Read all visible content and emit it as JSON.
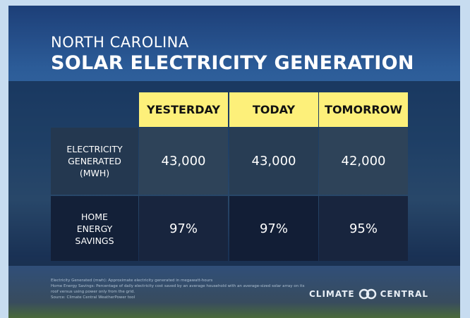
{
  "header": {
    "title_line1": "NORTH CAROLINA",
    "title_line2": "SOLAR ELECTRICITY GENERATION"
  },
  "table": {
    "columns": [
      "YESTERDAY",
      "TODAY",
      "TOMORROW"
    ],
    "rows": [
      {
        "label": "ELECTRICITY GENERATED (MWH)",
        "cells": [
          "43,000",
          "43,000",
          "42,000"
        ]
      },
      {
        "label": "HOME ENERGY SAVINGS",
        "cells": [
          "97%",
          "97%",
          "95%"
        ]
      }
    ]
  },
  "footnotes": [
    "Electricity Generated (mwh): Approximate electricity generated in megawatt-hours",
    "Home Energy Savings: Percentage of daily electricity cost saved by an average household with an average-sized solar array on its roof versus using power only from the grid.",
    "Source: Climate Central WeatherPower tool"
  ],
  "logo": {
    "left": "CLIMATE",
    "right": "CENTRAL"
  }
}
